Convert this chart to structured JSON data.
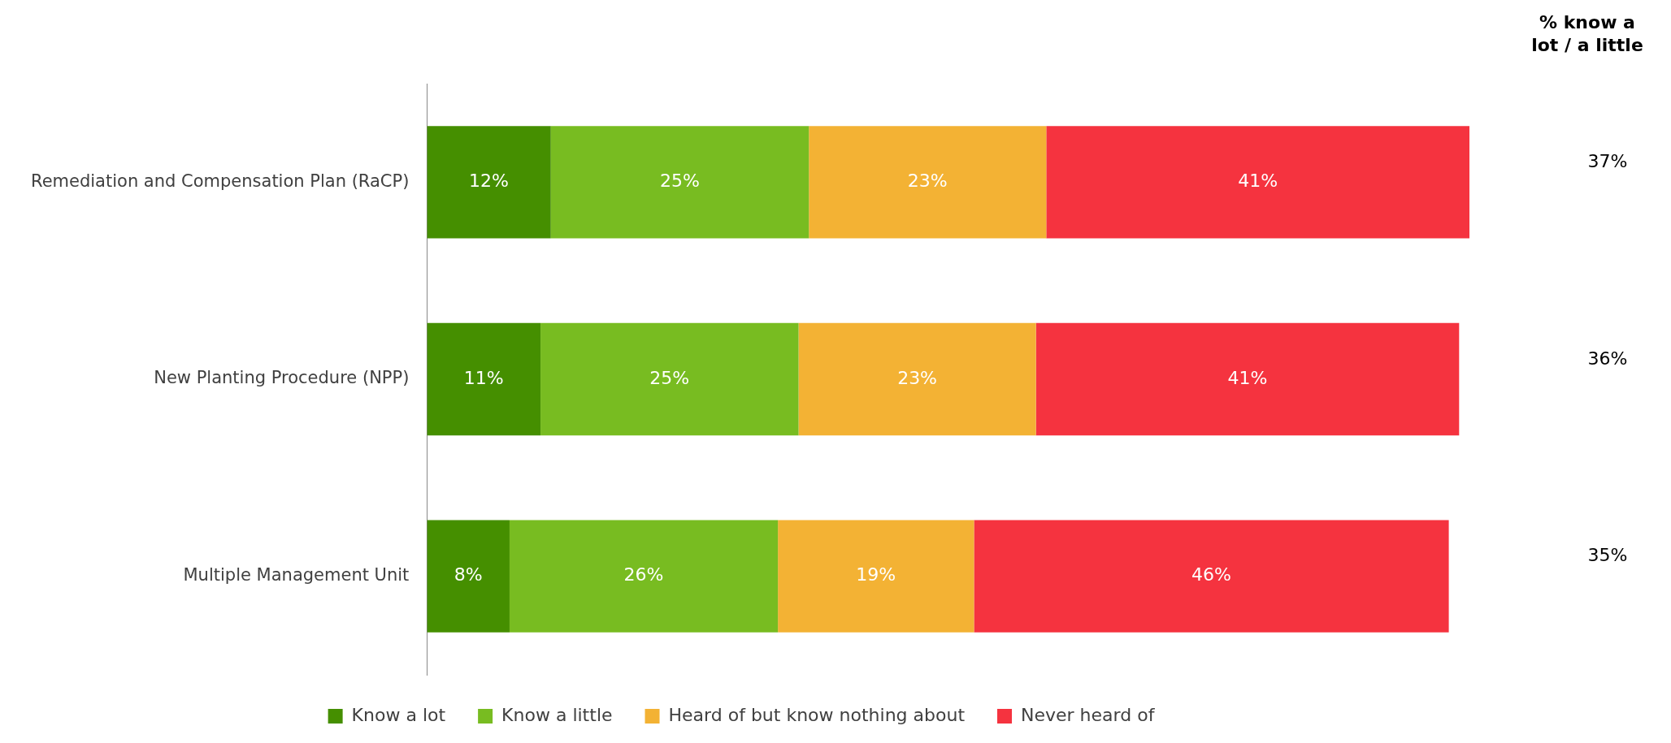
{
  "chart_data": {
    "type": "bar",
    "orientation": "horizontal",
    "stacked": true,
    "grid": false,
    "legend": "bottom",
    "categories": [
      "Remediation and Compensation Plan (RaCP)",
      "New Planting Procedure (NPP)",
      "Multiple Management Unit"
    ],
    "series": [
      {
        "name": "Know a lot",
        "color": "#458f00",
        "values": [
          12,
          11,
          8
        ],
        "value_labels": [
          "12%",
          "11%",
          "8%"
        ]
      },
      {
        "name": "Know a little",
        "color": "#78bc21",
        "values": [
          25,
          25,
          26
        ],
        "value_labels": [
          "25%",
          "25%",
          "26%"
        ]
      },
      {
        "name": "Heard of but know nothing about",
        "color": "#f3b234",
        "values": [
          23,
          23,
          19
        ],
        "value_labels": [
          "23%",
          "23%",
          "19%"
        ]
      },
      {
        "name": "Never heard of",
        "color": "#f5333f",
        "values": [
          41,
          41,
          46
        ],
        "value_labels": [
          "41%",
          "41%",
          "46%"
        ]
      }
    ],
    "annotations": [
      "% know a lot / a little",
      "37%",
      "36%",
      "35%"
    ]
  }
}
